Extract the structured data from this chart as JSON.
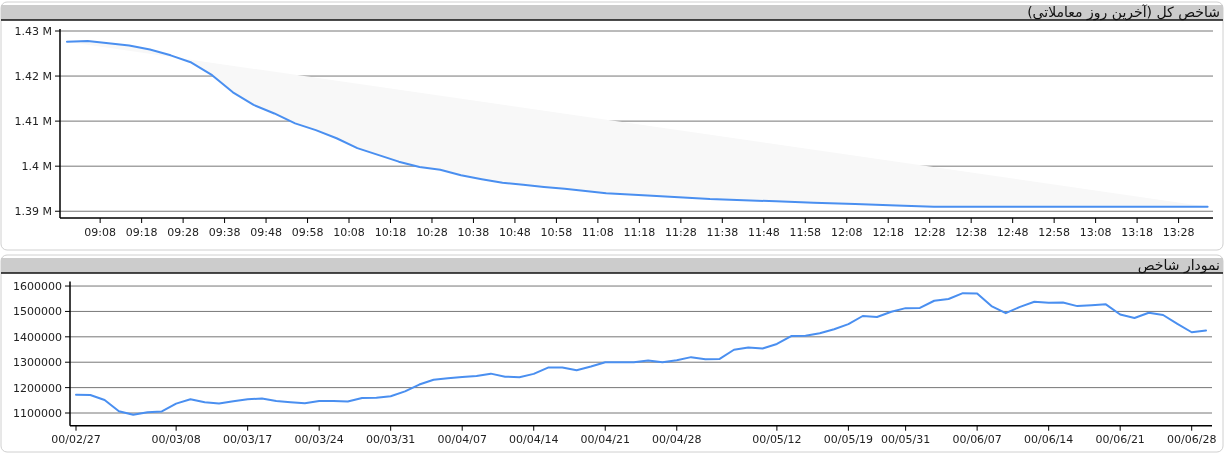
{
  "chart_data": [
    {
      "type": "line",
      "title": "شاخص کل (آخرین روز معاملاتی)",
      "xlim": [
        8.972,
        13.605
      ],
      "ylim": [
        1388500,
        1430000
      ],
      "xticks": [
        {
          "value": 9.1333,
          "label": "09:08"
        },
        {
          "value": 9.3,
          "label": "09:18"
        },
        {
          "value": 9.4667,
          "label": "09:28"
        },
        {
          "value": 9.6333,
          "label": "09:38"
        },
        {
          "value": 9.8,
          "label": "09:48"
        },
        {
          "value": 9.9667,
          "label": "09:58"
        },
        {
          "value": 10.1333,
          "label": "10:08"
        },
        {
          "value": 10.3,
          "label": "10:18"
        },
        {
          "value": 10.4667,
          "label": "10:28"
        },
        {
          "value": 10.6333,
          "label": "10:38"
        },
        {
          "value": 10.8,
          "label": "10:48"
        },
        {
          "value": 10.9667,
          "label": "10:58"
        },
        {
          "value": 11.1333,
          "label": "11:08"
        },
        {
          "value": 11.3,
          "label": "11:18"
        },
        {
          "value": 11.4667,
          "label": "11:28"
        },
        {
          "value": 11.6333,
          "label": "11:38"
        },
        {
          "value": 11.8,
          "label": "11:48"
        },
        {
          "value": 11.9667,
          "label": "11:58"
        },
        {
          "value": 12.1333,
          "label": "12:08"
        },
        {
          "value": 12.3,
          "label": "12:18"
        },
        {
          "value": 12.4667,
          "label": "12:28"
        },
        {
          "value": 12.6333,
          "label": "12:38"
        },
        {
          "value": 12.8,
          "label": "12:48"
        },
        {
          "value": 12.9667,
          "label": "12:58"
        },
        {
          "value": 13.1333,
          "label": "13:08"
        },
        {
          "value": 13.3,
          "label": "13:18"
        },
        {
          "value": 13.4667,
          "label": "13:28"
        }
      ],
      "yticks": [
        {
          "value": 1390000,
          "label": "1.39 M"
        },
        {
          "value": 1400000,
          "label": "1.4 M"
        },
        {
          "value": 1410000,
          "label": "1.41 M"
        },
        {
          "value": 1420000,
          "label": "1.42 M"
        },
        {
          "value": 1430000,
          "label": "1.43 M"
        }
      ],
      "grid": "y",
      "series": [
        {
          "color": "#4a8ff0",
          "x": [
            9.0,
            9.0833,
            9.1667,
            9.25,
            9.3333,
            9.4167,
            9.5,
            9.5833,
            9.6667,
            9.75,
            9.8333,
            9.9167,
            10.0,
            10.0833,
            10.1667,
            10.25,
            10.3333,
            10.4167,
            10.5,
            10.5833,
            10.6667,
            10.75,
            10.8333,
            10.9167,
            11.0,
            11.0833,
            11.1667,
            11.3333,
            11.5833,
            11.85,
            12.0,
            12.1667,
            12.3333,
            12.4833,
            13.5833
          ],
          "values": [
            1427600,
            1427800,
            1427300,
            1426800,
            1425900,
            1424600,
            1423000,
            1420200,
            1416400,
            1413600,
            1411700,
            1409500,
            1408000,
            1406200,
            1404000,
            1402500,
            1401000,
            1399800,
            1399200,
            1398000,
            1397100,
            1396300,
            1395900,
            1395400,
            1395000,
            1394500,
            1394000,
            1393500,
            1392700,
            1392200,
            1391900,
            1391600,
            1391300,
            1391000,
            1391000
          ]
        }
      ]
    },
    {
      "type": "line",
      "title": "نمودار شاخص",
      "ylim": [
        1050000,
        1610000
      ],
      "yticks": [
        1100000,
        1200000,
        1300000,
        1400000,
        1500000,
        1600000
      ],
      "grid": "y",
      "categories": [
        "00/02/27",
        null,
        null,
        null,
        null,
        null,
        null,
        "00/03/08",
        null,
        null,
        null,
        null,
        "00/03/17",
        null,
        null,
        null,
        null,
        "00/03/24",
        null,
        null,
        null,
        null,
        "00/03/31",
        null,
        null,
        null,
        null,
        "00/04/07",
        null,
        null,
        null,
        null,
        "00/04/14",
        null,
        null,
        null,
        null,
        "00/04/21",
        null,
        null,
        null,
        null,
        "00/04/28",
        null,
        null,
        null,
        null,
        null,
        null,
        "00/05/12",
        null,
        null,
        null,
        null,
        "00/05/19",
        null,
        null,
        null,
        "00/05/31",
        null,
        null,
        null,
        null,
        "00/06/07",
        null,
        null,
        null,
        null,
        "00/06/14",
        null,
        null,
        null,
        null,
        "00/06/21",
        null,
        null,
        null,
        null,
        "00/06/28",
        null
      ],
      "series": [
        {
          "color": "#4a8ff0",
          "values": [
            1172000,
            1171000,
            1151000,
            1107000,
            1093000,
            1103000,
            1106000,
            1137000,
            1154000,
            1142000,
            1137000,
            1146000,
            1154000,
            1157000,
            1147000,
            1142000,
            1138000,
            1147000,
            1147000,
            1145000,
            1159000,
            1160000,
            1166000,
            1185000,
            1212000,
            1231000,
            1237000,
            1242000,
            1246000,
            1255000,
            1243000,
            1241000,
            1254000,
            1279000,
            1279000,
            1268000,
            1283000,
            1300000,
            1300000,
            1300000,
            1307000,
            1300000,
            1308000,
            1320000,
            1312000,
            1313000,
            1349000,
            1358000,
            1354000,
            1372000,
            1403000,
            1404000,
            1414000,
            1430000,
            1450000,
            1482000,
            1478000,
            1499000,
            1513000,
            1514000,
            1542000,
            1549000,
            1572000,
            1571000,
            1521000,
            1493000,
            1518000,
            1538000,
            1534000,
            1535000,
            1521000,
            1524000,
            1528000,
            1488000,
            1474000,
            1495000,
            1486000,
            1451000,
            1418000,
            1425000
          ]
        }
      ]
    }
  ]
}
